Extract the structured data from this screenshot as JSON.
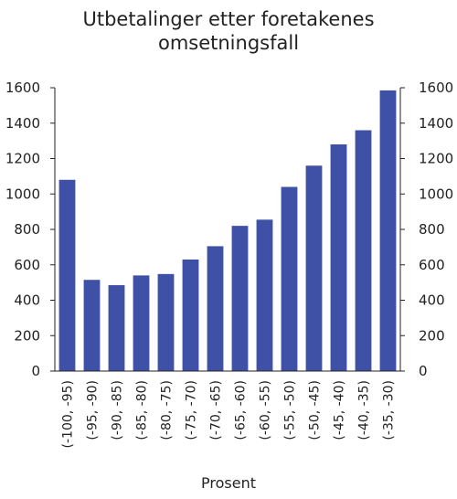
{
  "chart_data": {
    "type": "bar",
    "title_lines": [
      "Utbetalinger etter foretakenes",
      "omsetningsfall"
    ],
    "xlabel": "Prosent",
    "ylabel": "",
    "categories": [
      "(-100, -95)",
      "(-95, -90)",
      "(-90, -85)",
      "(-85, -80)",
      "(-80, -75)",
      "(-75, -70)",
      "(-70, -65)",
      "(-65, -60)",
      "(-60, -55)",
      "(-55, -50)",
      "(-50, -45)",
      "(-45, -40)",
      "(-40, -35)",
      "(-35, -30)"
    ],
    "values": [
      1080,
      515,
      485,
      540,
      548,
      630,
      705,
      820,
      855,
      1040,
      1160,
      1280,
      1360,
      1585
    ],
    "ylim": [
      0,
      1600
    ],
    "yticks": [
      0,
      200,
      400,
      600,
      800,
      1000,
      1200,
      1400,
      1600
    ],
    "y_axis_both_sides": true,
    "grid": false,
    "bar_color": "#3f51a6"
  }
}
